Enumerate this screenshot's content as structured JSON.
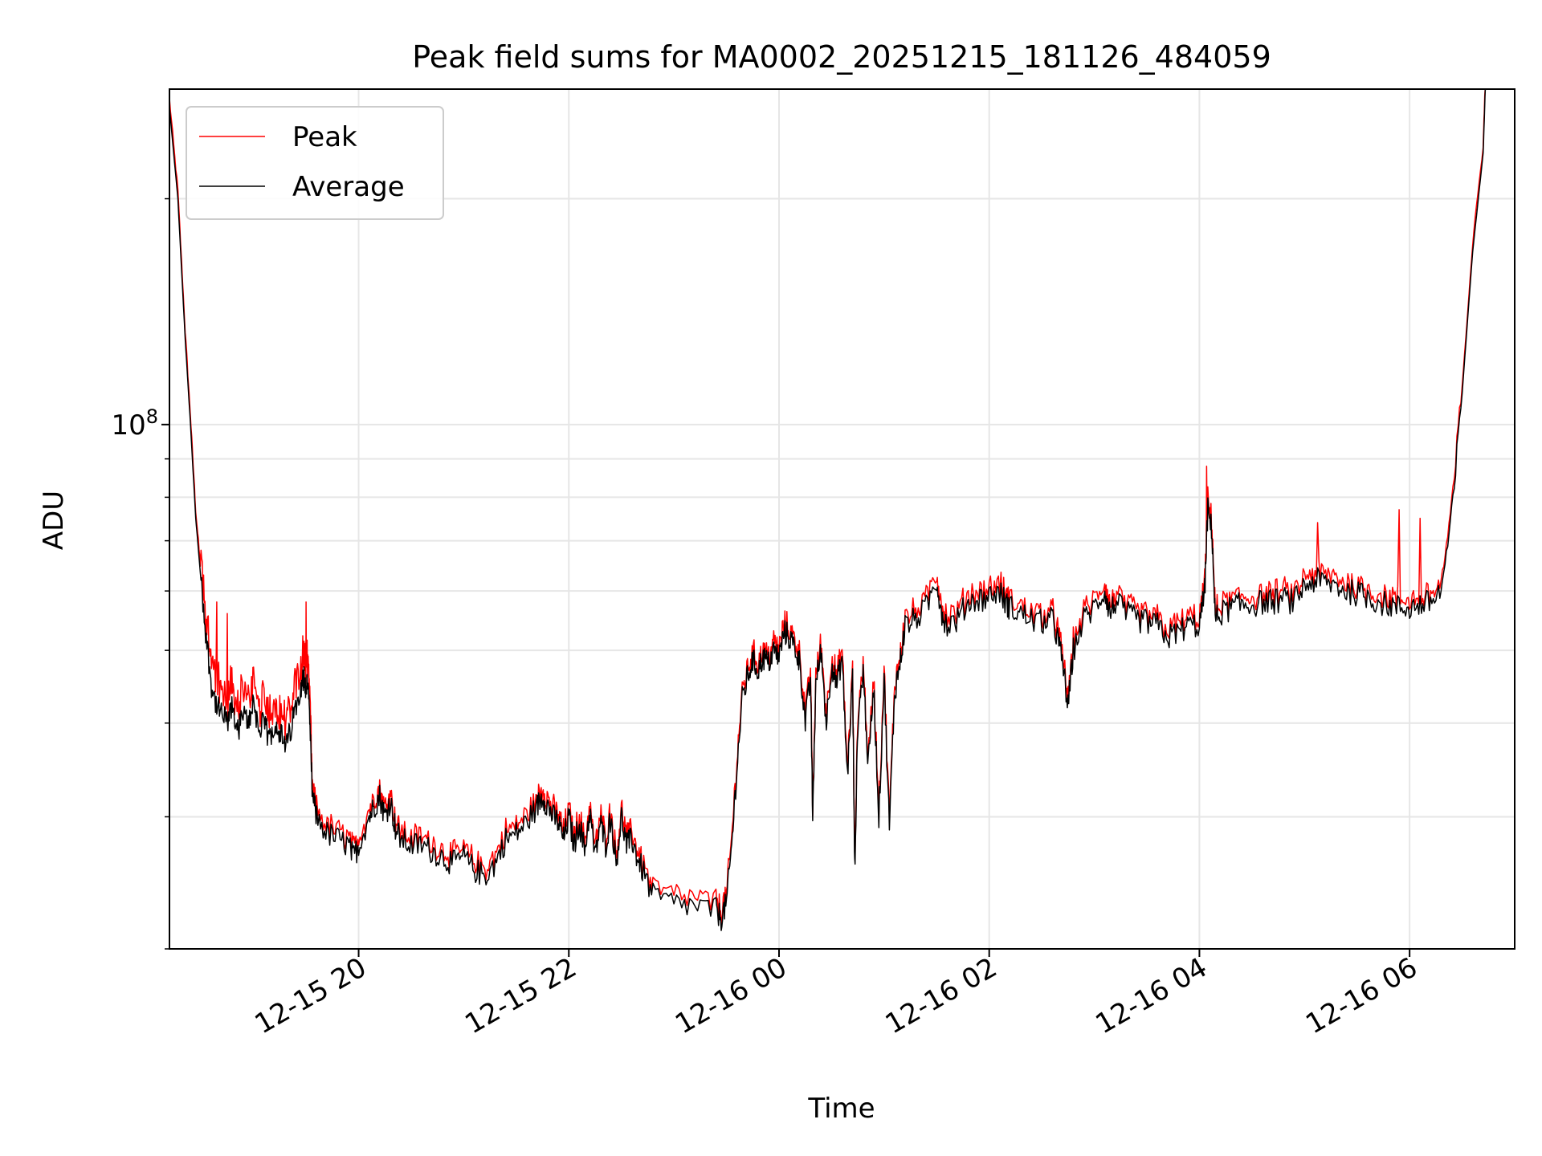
{
  "chart_data": {
    "type": "line",
    "title": "Peak field sums for MA0002_20251215_181126_484059",
    "xlabel": "Time",
    "ylabel": "ADU",
    "yscale": "log",
    "ylim": [
      20000000,
      280000000
    ],
    "xlim_hours": [
      -5.8,
      7.0
    ],
    "x_unit": "hours relative to 12-16 00:00",
    "grid": true,
    "legend_position": "top-left",
    "y_tick_labels": [
      {
        "value": 100000000,
        "base": "10",
        "exp": "8"
      }
    ],
    "x_ticks": [
      {
        "h": -4,
        "label": "12-15 20"
      },
      {
        "h": -2,
        "label": "12-15 22"
      },
      {
        "h": 0,
        "label": "12-16 00"
      },
      {
        "h": 2,
        "label": "12-16 02"
      },
      {
        "h": 4,
        "label": "12-16 04"
      },
      {
        "h": 6,
        "label": "12-16 06"
      }
    ],
    "series": [
      {
        "name": "Peak",
        "color": "#ff0000"
      },
      {
        "name": "Average",
        "color": "#000000"
      }
    ],
    "average_points": [
      [
        -5.8,
        265000000
      ],
      [
        -5.72,
        200000000
      ],
      [
        -5.65,
        130000000
      ],
      [
        -5.6,
        100000000
      ],
      [
        -5.55,
        75000000
      ],
      [
        -5.5,
        62000000
      ],
      [
        -5.45,
        52000000
      ],
      [
        -5.4,
        45000000
      ],
      [
        -5.35,
        42000000
      ],
      [
        -5.3,
        41000000
      ],
      [
        -5.25,
        40000000
      ],
      [
        -5.2,
        42000000
      ],
      [
        -5.15,
        39000000
      ],
      [
        -5.1,
        41000000
      ],
      [
        -5.05,
        40000000
      ],
      [
        -5.0,
        43000000
      ],
      [
        -4.95,
        39000000
      ],
      [
        -4.9,
        40000000
      ],
      [
        -4.85,
        38000000
      ],
      [
        -4.8,
        40000000
      ],
      [
        -4.75,
        39000000
      ],
      [
        -4.7,
        37000000
      ],
      [
        -4.65,
        39000000
      ],
      [
        -4.6,
        42000000
      ],
      [
        -4.55,
        45000000
      ],
      [
        -4.52,
        46000000
      ],
      [
        -4.5,
        44000000
      ],
      [
        -4.48,
        46000000
      ],
      [
        -4.46,
        38000000
      ],
      [
        -4.44,
        32000000
      ],
      [
        -4.4,
        30000000
      ],
      [
        -4.3,
        28500000
      ],
      [
        -4.2,
        28000000
      ],
      [
        -4.1,
        27500000
      ],
      [
        -4.05,
        26500000
      ],
      [
        -4.0,
        27500000
      ],
      [
        -3.9,
        30000000
      ],
      [
        -3.85,
        31000000
      ],
      [
        -3.8,
        32000000
      ],
      [
        -3.75,
        30000000
      ],
      [
        -3.7,
        31500000
      ],
      [
        -3.65,
        29000000
      ],
      [
        -3.6,
        28000000
      ],
      [
        -3.5,
        27500000
      ],
      [
        -3.4,
        27500000
      ],
      [
        -3.3,
        27000000
      ],
      [
        -3.2,
        26500000
      ],
      [
        -3.1,
        26000000
      ],
      [
        -3.0,
        26500000
      ],
      [
        -2.9,
        25500000
      ],
      [
        -2.8,
        25000000
      ],
      [
        -2.7,
        26000000
      ],
      [
        -2.6,
        28000000
      ],
      [
        -2.5,
        28500000
      ],
      [
        -2.4,
        29500000
      ],
      [
        -2.3,
        31000000
      ],
      [
        -2.25,
        32000000
      ],
      [
        -2.2,
        31000000
      ],
      [
        -2.15,
        30000000
      ],
      [
        -2.1,
        29500000
      ],
      [
        -2.05,
        28000000
      ],
      [
        -2.0,
        30000000
      ],
      [
        -1.95,
        27500000
      ],
      [
        -1.9,
        29500000
      ],
      [
        -1.85,
        27000000
      ],
      [
        -1.8,
        30500000
      ],
      [
        -1.75,
        26500000
      ],
      [
        -1.7,
        29500000
      ],
      [
        -1.65,
        27500000
      ],
      [
        -1.6,
        30000000
      ],
      [
        -1.55,
        26000000
      ],
      [
        -1.5,
        30000000
      ],
      [
        -1.45,
        27500000
      ],
      [
        -1.4,
        28000000
      ],
      [
        -1.35,
        26500000
      ],
      [
        -1.3,
        25500000
      ],
      [
        -1.2,
        23500000
      ],
      [
        -1.0,
        23000000
      ],
      [
        -0.8,
        22800000
      ],
      [
        -0.6,
        22500000
      ],
      [
        -0.55,
        22000000
      ],
      [
        -0.5,
        23000000
      ],
      [
        -0.45,
        27500000
      ],
      [
        -0.4,
        35000000
      ],
      [
        -0.35,
        43000000
      ],
      [
        -0.3,
        46000000
      ],
      [
        -0.25,
        48500000
      ],
      [
        -0.2,
        47000000
      ],
      [
        -0.15,
        49000000
      ],
      [
        -0.1,
        48000000
      ],
      [
        -0.05,
        50000000
      ],
      [
        0.0,
        49000000
      ],
      [
        0.05,
        53000000
      ],
      [
        0.1,
        52000000
      ],
      [
        0.15,
        50500000
      ],
      [
        0.2,
        48000000
      ],
      [
        0.25,
        40000000
      ],
      [
        0.3,
        46000000
      ],
      [
        0.32,
        30000000
      ],
      [
        0.35,
        45000000
      ],
      [
        0.4,
        50000000
      ],
      [
        0.45,
        40000000
      ],
      [
        0.5,
        48000000
      ],
      [
        0.55,
        45000000
      ],
      [
        0.6,
        49000000
      ],
      [
        0.65,
        34000000
      ],
      [
        0.7,
        46000000
      ],
      [
        0.72,
        25500000
      ],
      [
        0.75,
        40000000
      ],
      [
        0.8,
        47000000
      ],
      [
        0.85,
        35000000
      ],
      [
        0.9,
        45000000
      ],
      [
        0.95,
        30000000
      ],
      [
        1.0,
        46000000
      ],
      [
        1.05,
        29000000
      ],
      [
        1.1,
        44000000
      ],
      [
        1.15,
        48000000
      ],
      [
        1.2,
        54000000
      ],
      [
        1.3,
        55000000
      ],
      [
        1.4,
        57000000
      ],
      [
        1.5,
        62000000
      ],
      [
        1.55,
        56000000
      ],
      [
        1.6,
        54000000
      ],
      [
        1.7,
        55000000
      ],
      [
        1.8,
        58000000
      ],
      [
        1.9,
        58500000
      ],
      [
        2.0,
        59000000
      ],
      [
        2.1,
        60000000
      ],
      [
        2.15,
        58000000
      ],
      [
        2.2,
        57000000
      ],
      [
        2.3,
        56000000
      ],
      [
        2.4,
        55000000
      ],
      [
        2.5,
        54500000
      ],
      [
        2.6,
        55000000
      ],
      [
        2.65,
        52000000
      ],
      [
        2.7,
        48000000
      ],
      [
        2.75,
        42000000
      ],
      [
        2.8,
        50000000
      ],
      [
        2.9,
        55000000
      ],
      [
        3.0,
        57000000
      ],
      [
        3.1,
        60000000
      ],
      [
        3.15,
        56000000
      ],
      [
        3.2,
        58000000
      ],
      [
        3.3,
        56000000
      ],
      [
        3.4,
        55000000
      ],
      [
        3.5,
        54500000
      ],
      [
        3.6,
        54000000
      ],
      [
        3.7,
        52000000
      ],
      [
        3.8,
        53000000
      ],
      [
        3.9,
        54000000
      ],
      [
        4.0,
        54000000
      ],
      [
        4.05,
        60000000
      ],
      [
        4.08,
        77000000
      ],
      [
        4.12,
        72000000
      ],
      [
        4.15,
        55000000
      ],
      [
        4.2,
        56000000
      ],
      [
        4.3,
        57000000
      ],
      [
        4.4,
        57500000
      ],
      [
        4.5,
        57500000
      ],
      [
        4.6,
        58000000
      ],
      [
        4.7,
        58000000
      ],
      [
        4.8,
        58500000
      ],
      [
        4.9,
        58000000
      ],
      [
        5.0,
        61000000
      ],
      [
        5.1,
        62000000
      ],
      [
        5.2,
        61500000
      ],
      [
        5.3,
        61000000
      ],
      [
        5.4,
        60000000
      ],
      [
        5.5,
        59500000
      ],
      [
        5.6,
        59000000
      ],
      [
        5.7,
        58000000
      ],
      [
        5.8,
        57500000
      ],
      [
        5.9,
        57000000
      ],
      [
        6.0,
        57000000
      ],
      [
        6.1,
        57500000
      ],
      [
        6.2,
        58000000
      ],
      [
        6.3,
        60000000
      ],
      [
        6.4,
        75000000
      ],
      [
        6.5,
        110000000
      ],
      [
        6.6,
        170000000
      ],
      [
        6.7,
        230000000
      ],
      [
        6.72,
        280000000
      ]
    ],
    "peak_spikes": [
      [
        -5.5,
        68000000
      ],
      [
        -5.35,
        58000000
      ],
      [
        -5.25,
        56000000
      ],
      [
        -4.5,
        58000000
      ],
      [
        -3.7,
        32500000
      ],
      [
        -2.3,
        32000000
      ],
      [
        4.07,
        88000000
      ],
      [
        5.12,
        74000000
      ],
      [
        5.9,
        77000000
      ],
      [
        6.1,
        75000000
      ]
    ]
  }
}
